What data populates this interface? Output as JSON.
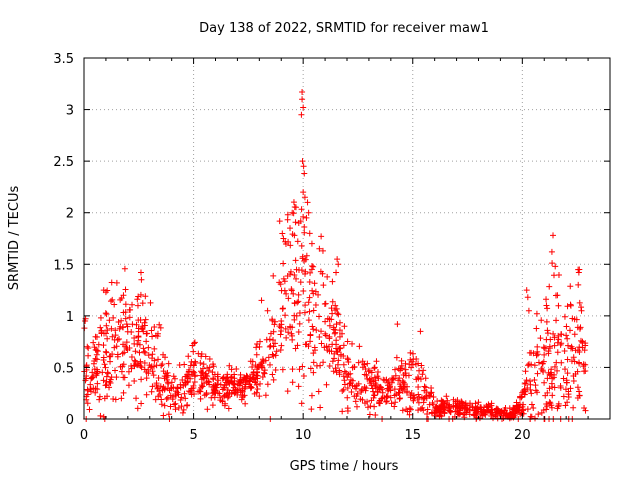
{
  "chart_data": {
    "type": "scatter",
    "title": "Day 138 of 2022, SRMTID for receiver maw1",
    "xlabel": "GPS time / hours",
    "ylabel": "SRMTID / TECUs",
    "xlim": [
      0,
      24
    ],
    "ylim": [
      0,
      3.5
    ],
    "x_ticks": [
      0,
      5,
      10,
      15,
      20
    ],
    "x_tick_labels": [
      "0",
      "5",
      "10",
      "15",
      "20"
    ],
    "y_ticks": [
      0,
      0.5,
      1,
      1.5,
      2,
      2.5,
      3,
      3.5
    ],
    "y_tick_labels": [
      "0",
      "0.5",
      "1",
      "1.5",
      "2",
      "2.5",
      "3",
      "3.5"
    ],
    "grid": true,
    "marker": "+",
    "color": "#ff0000",
    "series": [
      {
        "name": "maw1",
        "profile_x": [
          0.0,
          0.5,
          1.0,
          1.5,
          2.0,
          2.5,
          3.0,
          3.5,
          4.0,
          4.5,
          5.0,
          5.5,
          6.0,
          6.5,
          7.0,
          7.5,
          8.0,
          8.5,
          9.0,
          9.5,
          10.0,
          10.5,
          11.0,
          11.5,
          12.0,
          12.5,
          13.0,
          13.5,
          14.0,
          14.5,
          15.0,
          15.5,
          16.0,
          16.5,
          17.0,
          17.5,
          18.0,
          18.5,
          19.0,
          19.5,
          20.0,
          20.5,
          21.0,
          21.5,
          22.0,
          22.5,
          22.9
        ],
        "profile_y": [
          0.45,
          0.5,
          0.55,
          0.8,
          0.85,
          0.75,
          0.6,
          0.45,
          0.25,
          0.25,
          0.5,
          0.4,
          0.3,
          0.3,
          0.3,
          0.35,
          0.45,
          0.7,
          1.0,
          1.2,
          1.3,
          1.0,
          0.85,
          0.65,
          0.45,
          0.4,
          0.35,
          0.3,
          0.3,
          0.35,
          0.45,
          0.25,
          0.12,
          0.1,
          0.1,
          0.1,
          0.08,
          0.08,
          0.06,
          0.05,
          0.15,
          0.45,
          0.55,
          0.6,
          0.6,
          0.65,
          0.5
        ],
        "spread": [
          0.25,
          0.25,
          0.3,
          0.35,
          0.3,
          0.3,
          0.25,
          0.2,
          0.1,
          0.12,
          0.15,
          0.15,
          0.1,
          0.1,
          0.1,
          0.1,
          0.15,
          0.3,
          0.45,
          0.55,
          0.55,
          0.45,
          0.35,
          0.25,
          0.2,
          0.15,
          0.15,
          0.12,
          0.1,
          0.15,
          0.2,
          0.12,
          0.06,
          0.05,
          0.05,
          0.05,
          0.04,
          0.04,
          0.03,
          0.03,
          0.08,
          0.3,
          0.35,
          0.4,
          0.35,
          0.4,
          0.2
        ],
        "peaks": [
          {
            "x": 9.95,
            "y": 3.17
          },
          {
            "x": 9.95,
            "y": 3.1
          },
          {
            "x": 10.0,
            "y": 3.02
          },
          {
            "x": 9.92,
            "y": 2.95
          },
          {
            "x": 9.97,
            "y": 2.5
          },
          {
            "x": 10.02,
            "y": 2.45
          },
          {
            "x": 10.05,
            "y": 2.38
          },
          {
            "x": 10.0,
            "y": 2.2
          },
          {
            "x": 10.08,
            "y": 2.15
          },
          {
            "x": 10.2,
            "y": 2.1
          },
          {
            "x": 10.25,
            "y": 2.0
          },
          {
            "x": 9.5,
            "y": 2.0
          },
          {
            "x": 9.3,
            "y": 1.98
          },
          {
            "x": 10.15,
            "y": 1.95
          },
          {
            "x": 9.8,
            "y": 1.9
          },
          {
            "x": 9.4,
            "y": 1.85
          },
          {
            "x": 10.3,
            "y": 1.8
          },
          {
            "x": 9.6,
            "y": 1.78
          },
          {
            "x": 9.1,
            "y": 1.75
          },
          {
            "x": 10.4,
            "y": 1.7
          },
          {
            "x": 11.55,
            "y": 1.55
          },
          {
            "x": 11.6,
            "y": 1.5
          },
          {
            "x": 11.5,
            "y": 1.42
          },
          {
            "x": 2.6,
            "y": 1.42
          },
          {
            "x": 2.62,
            "y": 1.35
          },
          {
            "x": 1.5,
            "y": 1.32
          },
          {
            "x": 0.9,
            "y": 1.25
          },
          {
            "x": 1.0,
            "y": 1.23
          },
          {
            "x": 1.8,
            "y": 1.2
          },
          {
            "x": 8.1,
            "y": 1.15
          },
          {
            "x": 14.3,
            "y": 0.92
          },
          {
            "x": 15.35,
            "y": 0.85
          },
          {
            "x": 21.4,
            "y": 1.78
          },
          {
            "x": 21.35,
            "y": 1.62
          },
          {
            "x": 21.5,
            "y": 1.48
          },
          {
            "x": 22.6,
            "y": 1.45
          },
          {
            "x": 22.58,
            "y": 1.42
          },
          {
            "x": 22.55,
            "y": 1.3
          },
          {
            "x": 20.2,
            "y": 1.25
          },
          {
            "x": 20.25,
            "y": 1.18
          },
          {
            "x": 21.6,
            "y": 1.2
          },
          {
            "x": 21.1,
            "y": 1.1
          },
          {
            "x": 22.7,
            "y": 1.05
          },
          {
            "x": 20.3,
            "y": 1.05
          },
          {
            "x": 0.05,
            "y": 0.95
          },
          {
            "x": 0.15,
            "y": 0.7
          },
          {
            "x": 0.9,
            "y": 0.02
          },
          {
            "x": 0.75,
            "y": 0.03
          },
          {
            "x": 0.1,
            "y": 0.0
          },
          {
            "x": 0.95,
            "y": 0.0
          },
          {
            "x": 3.9,
            "y": 0.0
          },
          {
            "x": 8.5,
            "y": 0.0
          },
          {
            "x": 13.6,
            "y": 0.0
          },
          {
            "x": 15.7,
            "y": 0.0
          }
        ]
      }
    ]
  }
}
